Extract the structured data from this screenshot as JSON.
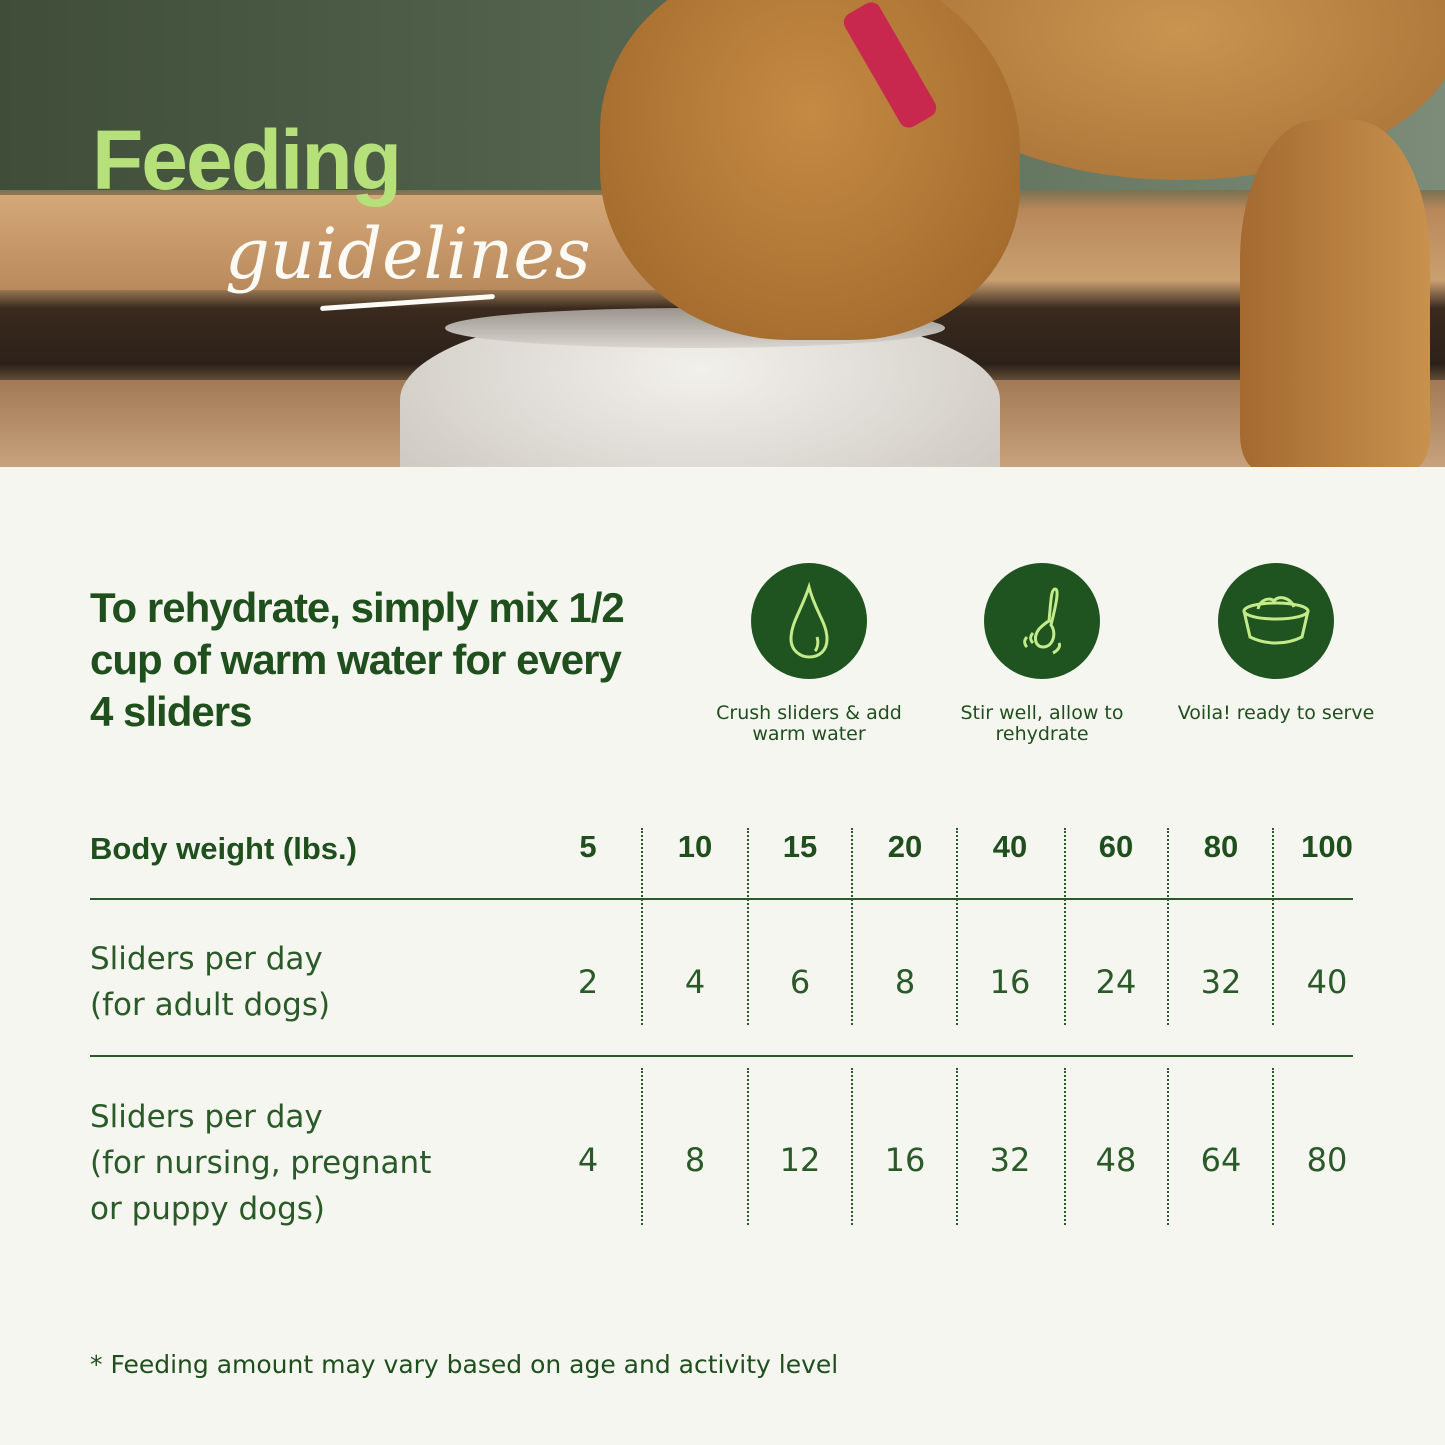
{
  "hero": {
    "title_main": "Feeding",
    "title_script": "guidelines"
  },
  "intro": {
    "text": "To rehydrate, simply mix 1/2 cup of warm water for every 4 sliders"
  },
  "steps": [
    {
      "icon": "water-drop-icon",
      "label": "Crush sliders & add warm water"
    },
    {
      "icon": "spoon-stir-icon",
      "label": "Stir well, allow to rehydrate"
    },
    {
      "icon": "food-bowl-icon",
      "label": "Voila! ready to serve"
    }
  ],
  "table": {
    "header_label": "Body weight (lbs.)",
    "weights": [
      "5",
      "10",
      "15",
      "20",
      "40",
      "60",
      "80",
      "100"
    ],
    "rows": [
      {
        "label_line1": "Sliders per day",
        "label_line2": "(for adult dogs)",
        "label_line3": "",
        "values": [
          "2",
          "4",
          "6",
          "8",
          "16",
          "24",
          "32",
          "40"
        ]
      },
      {
        "label_line1": "Sliders per day",
        "label_line2": "(for nursing, pregnant",
        "label_line3": "or puppy dogs)",
        "values": [
          "4",
          "8",
          "12",
          "16",
          "32",
          "48",
          "64",
          "80"
        ]
      }
    ]
  },
  "footnote": "* Feeding amount may vary based on age and activity level",
  "colors": {
    "dark_green": "#1f5420",
    "light_green": "#b5e07a",
    "background": "#f6f6f1"
  }
}
